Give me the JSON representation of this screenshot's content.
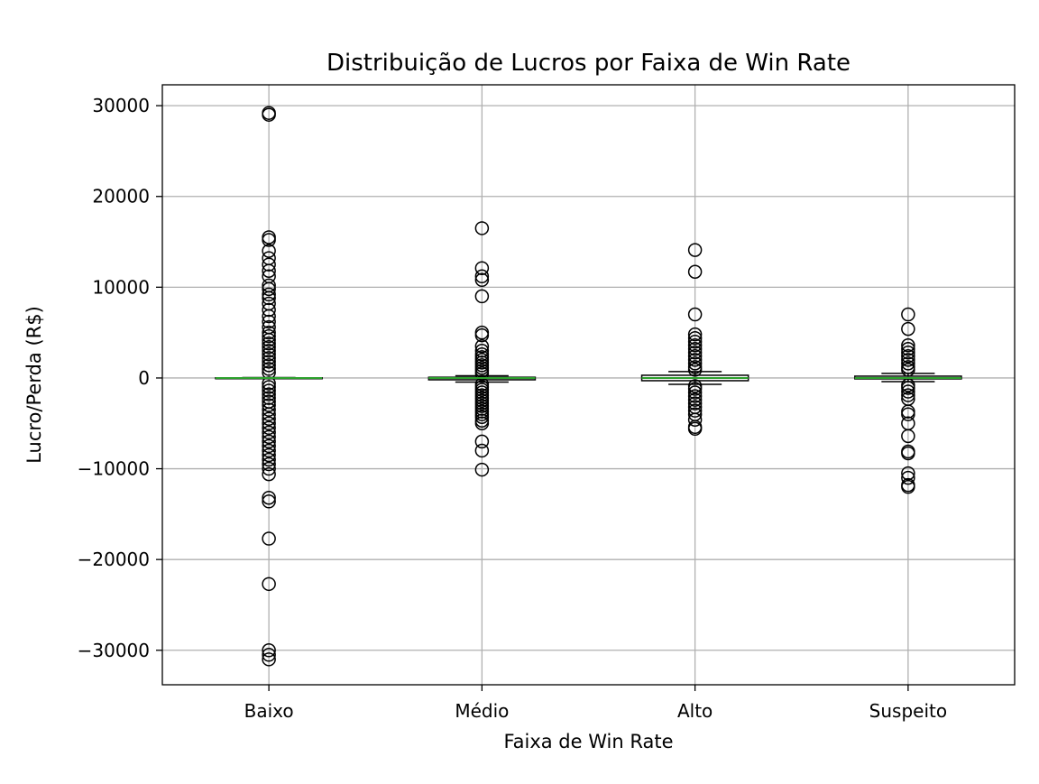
{
  "chart_data": {
    "type": "box",
    "title": "Distribuição de Lucros por Faixa de Win Rate",
    "xlabel": "Faixa de Win Rate",
    "ylabel": "Lucro/Perda (R$)",
    "categories": [
      "Baixo",
      "Médio",
      "Alto",
      "Suspeito"
    ],
    "ylim": [
      -33800,
      32300
    ],
    "yticks": [
      -30000,
      -20000,
      -10000,
      0,
      10000,
      20000,
      30000
    ],
    "ytick_labels": [
      "−30000",
      "−20000",
      "−10000",
      "0",
      "10000",
      "20000",
      "30000"
    ],
    "grid": true,
    "colors": {
      "median": "#2ca02c",
      "box": "#000000",
      "grid": "#b0b0b0"
    },
    "boxes": [
      {
        "category": "Baixo",
        "q1": -20,
        "median": 0,
        "q3": 20,
        "whisker_low": -50,
        "whisker_high": 50,
        "outliers": [
          29200,
          29000,
          15500,
          15200,
          14000,
          13200,
          12500,
          11800,
          11200,
          10200,
          9800,
          9200,
          8800,
          8200,
          7500,
          6800,
          6200,
          5600,
          5000,
          4600,
          4200,
          3800,
          3400,
          3000,
          2600,
          2200,
          1800,
          1400,
          1000,
          600,
          -600,
          -1000,
          -1400,
          -1800,
          -2200,
          -2600,
          -3000,
          -3500,
          -4000,
          -4500,
          -5000,
          -5500,
          -6000,
          -6500,
          -7000,
          -7500,
          -8000,
          -8500,
          -9000,
          -9500,
          -10000,
          -10600,
          -13200,
          -13600,
          -17700,
          -22700,
          -30000,
          -30500,
          -31000
        ]
      },
      {
        "category": "Médio",
        "q1": -200,
        "median": 0,
        "q3": 80,
        "whisker_low": -450,
        "whisker_high": 250,
        "outliers": [
          16500,
          12100,
          11200,
          10800,
          9000,
          5000,
          4700,
          3500,
          3000,
          2600,
          2300,
          2000,
          1700,
          1400,
          1100,
          800,
          500,
          -700,
          -1000,
          -1300,
          -1600,
          -1900,
          -2200,
          -2500,
          -2800,
          -3100,
          -3400,
          -3700,
          -4000,
          -4300,
          -4700,
          -5000,
          -7000,
          -8000,
          -10100
        ]
      },
      {
        "category": "Alto",
        "q1": -300,
        "median": 0,
        "q3": 300,
        "whisker_low": -700,
        "whisker_high": 700,
        "outliers": [
          14100,
          11700,
          7000,
          4800,
          4400,
          4000,
          3600,
          3200,
          2800,
          2400,
          2000,
          1600,
          1200,
          900,
          -900,
          -1200,
          -1600,
          -2000,
          -2400,
          -2800,
          -3200,
          -3600,
          -4000,
          -4600,
          -5400,
          -5600
        ]
      },
      {
        "category": "Suspeito",
        "q1": -100,
        "median": 0,
        "q3": 200,
        "whisker_low": -400,
        "whisker_high": 500,
        "outliers": [
          7000,
          5400,
          3600,
          3200,
          2800,
          2400,
          2000,
          1600,
          1200,
          900,
          -800,
          -1100,
          -1500,
          -1900,
          -2300,
          -3700,
          -4000,
          -5000,
          -6400,
          -8100,
          -8300,
          -10500,
          -11000,
          -11800,
          -12000
        ]
      }
    ]
  }
}
